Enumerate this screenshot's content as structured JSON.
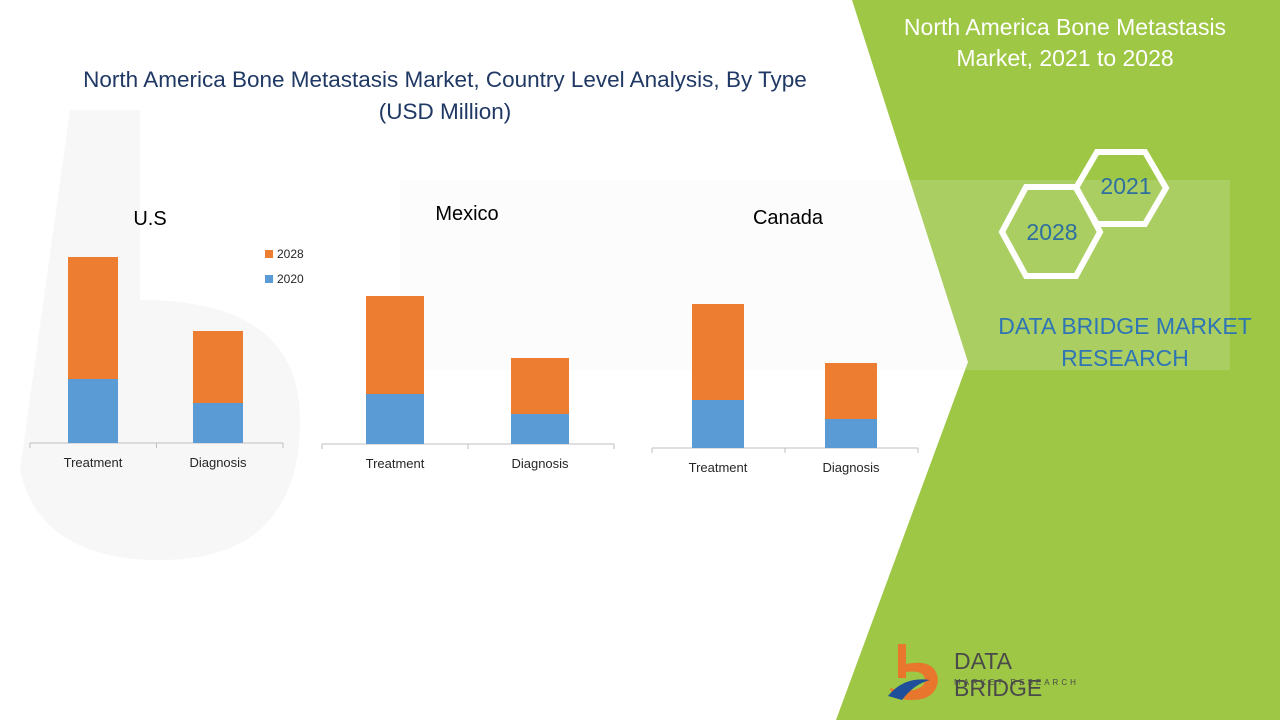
{
  "title": {
    "line1": "North America Bone Metastasis Market, Country Level Analysis, By Type",
    "line2": "(USD Million)"
  },
  "side_panel": {
    "title_line1": "North America Bone Metastasis",
    "title_line2": "Market, 2021 to 2028",
    "badge_top": "2021",
    "badge_bottom": "2028",
    "brand_line1": "DATA BRIDGE MARKET",
    "brand_line2": "RESEARCH"
  },
  "logo": {
    "name": "DATA BRIDGE",
    "subtitle": "MARKET RESEARCH"
  },
  "colors": {
    "series_2020": "#5b9bd5",
    "series_2028": "#ed7d31",
    "panel_green": "#9dc744",
    "title_navy": "#1f3864"
  },
  "chart_data": [
    {
      "type": "bar",
      "stacked": true,
      "title": "U.S",
      "categories": [
        "Treatment",
        "Diagnosis"
      ],
      "series": [
        {
          "name": "2020",
          "values": [
            64,
            40
          ]
        },
        {
          "name": "2028",
          "values": [
            122,
            72
          ]
        }
      ],
      "legend": "right",
      "ylim": [
        0,
        200
      ]
    },
    {
      "type": "bar",
      "stacked": true,
      "title": "Mexico",
      "categories": [
        "Treatment",
        "Diagnosis"
      ],
      "series": [
        {
          "name": "2020",
          "values": [
            50,
            30
          ]
        },
        {
          "name": "2028",
          "values": [
            98,
            56
          ]
        }
      ],
      "ylim": [
        0,
        200
      ]
    },
    {
      "type": "bar",
      "stacked": true,
      "title": "Canada",
      "categories": [
        "Treatment",
        "Diagnosis"
      ],
      "series": [
        {
          "name": "2020",
          "values": [
            48,
            29
          ]
        },
        {
          "name": "2028",
          "values": [
            96,
            56
          ]
        }
      ],
      "ylim": [
        0,
        200
      ]
    }
  ]
}
